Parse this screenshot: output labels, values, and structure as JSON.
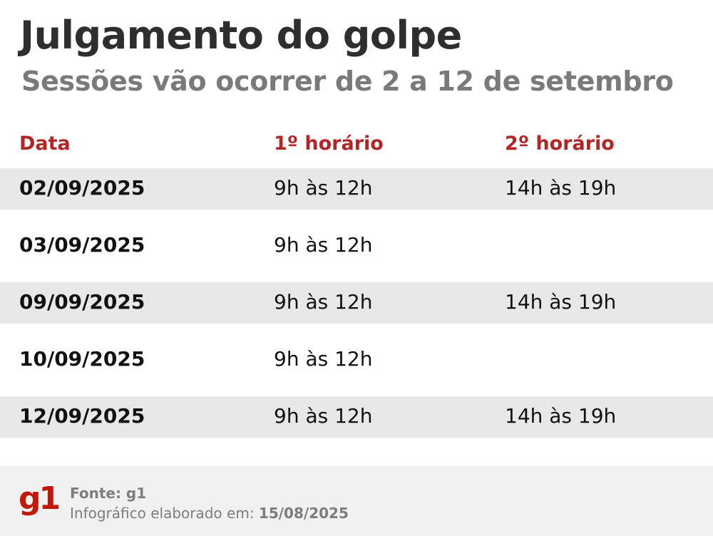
{
  "header": {
    "title": "Julgamento do golpe",
    "subtitle": "Sessões vão ocorrer de 2 a 12 de setembro"
  },
  "table": {
    "columns": [
      "Data",
      "1º horário",
      "2º horário"
    ],
    "rows": [
      {
        "date": "02/09/2025",
        "first": "9h às 12h",
        "second": "14h às 19h"
      },
      {
        "date": "03/09/2025",
        "first": "9h às 12h",
        "second": ""
      },
      {
        "date": "09/09/2025",
        "first": "9h às 12h",
        "second": "14h às 19h"
      },
      {
        "date": "10/09/2025",
        "first": "9h às 12h",
        "second": ""
      },
      {
        "date": "12/09/2025",
        "first": "9h às 12h",
        "second": "14h às 19h"
      }
    ]
  },
  "footer": {
    "logo": "g1",
    "source": "Fonte: g1",
    "credit_label": "Infográfico elaborado em: ",
    "credit_date": "15/08/2025"
  },
  "colors": {
    "accent": "#b42525",
    "brand": "#c4170c",
    "row_shade": "#e8e8e8",
    "footer_bg": "#f1f1f1"
  }
}
